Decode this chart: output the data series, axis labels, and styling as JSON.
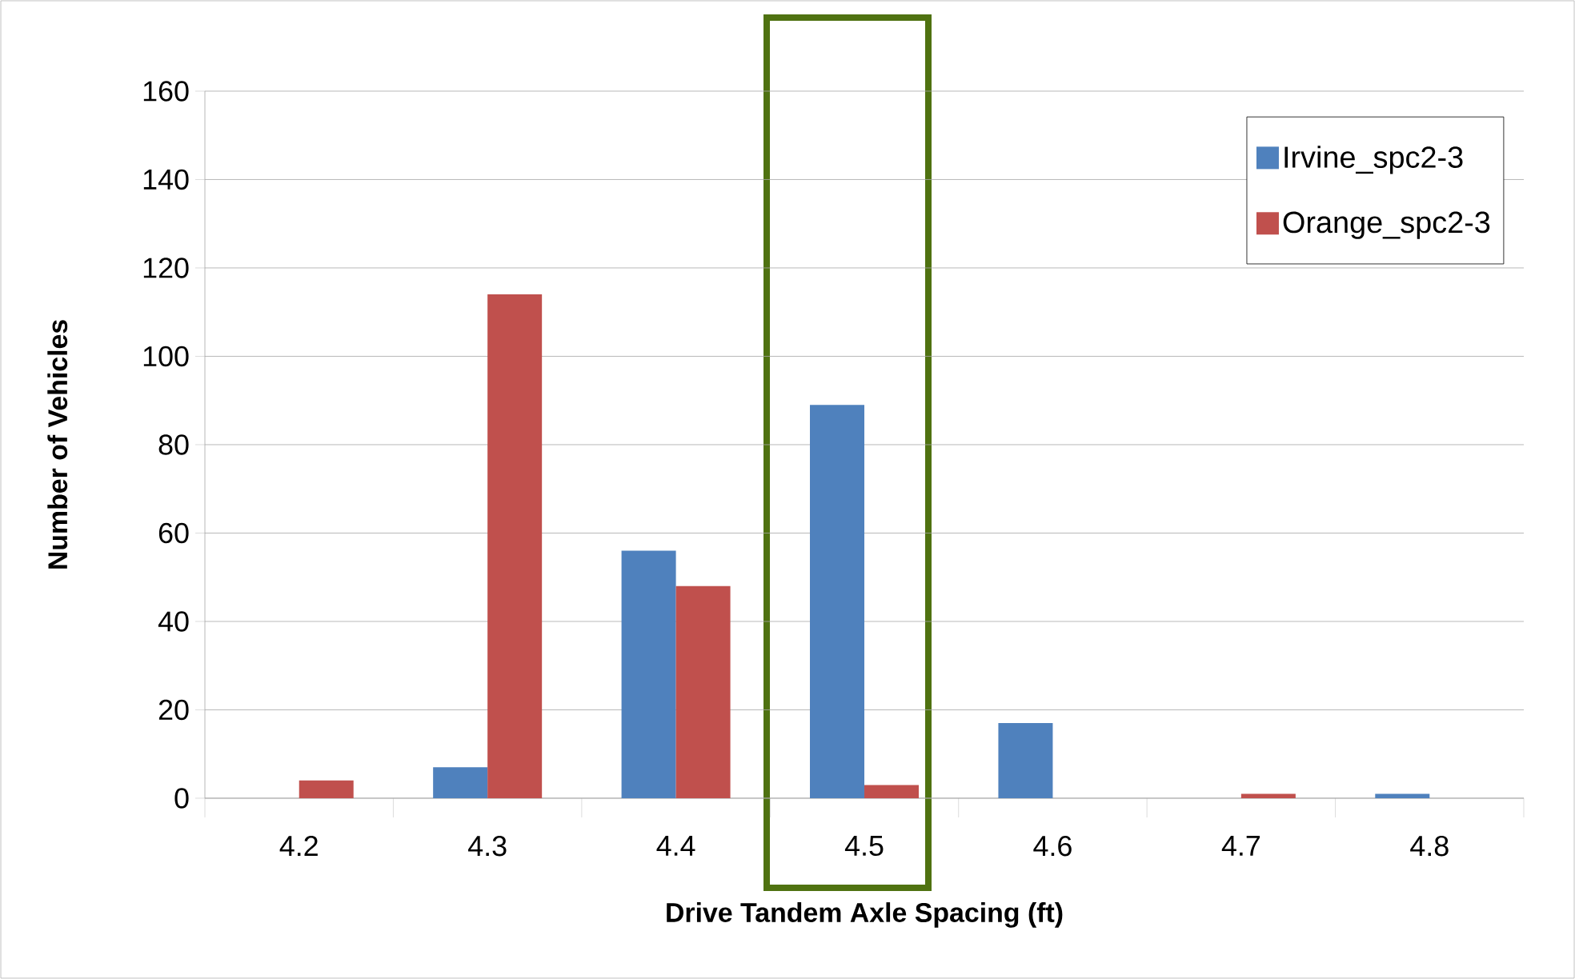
{
  "chart_data": {
    "type": "bar",
    "xlabel": "Drive Tandem Axle Spacing (ft)",
    "ylabel": "Number of Vehicles",
    "categories": [
      "4.2",
      "4.3",
      "4.4",
      "4.5",
      "4.6",
      "4.7",
      "4.8"
    ],
    "series": [
      {
        "name": "Irvine_spc2-3",
        "color": "#4f81bd",
        "values": [
          0,
          7,
          56,
          89,
          17,
          0,
          1
        ]
      },
      {
        "name": "Orange_spc2-3",
        "color": "#c0504d",
        "values": [
          4,
          114,
          48,
          3,
          0,
          1,
          0
        ]
      }
    ],
    "ylim": [
      0,
      160
    ],
    "yticks": [
      0,
      20,
      40,
      60,
      80,
      100,
      120,
      140,
      160
    ],
    "grid": "y",
    "legend": "top right"
  }
}
